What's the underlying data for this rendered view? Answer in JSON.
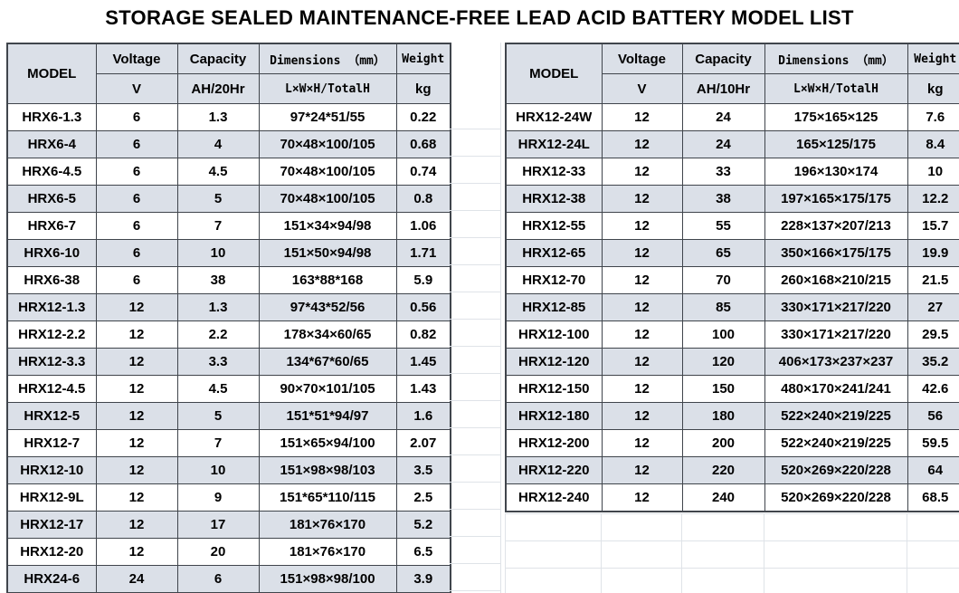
{
  "title": "STORAGE SEALED MAINTENANCE-FREE LEAD ACID BATTERY MODEL LIST",
  "colors": {
    "header_bg": "#dbe0e8",
    "row_alt_bg": "#dbe0e8",
    "border_dark": "#40454c",
    "grid_faint": "#dfe3e8"
  },
  "tables": [
    {
      "name": "left",
      "headers": {
        "model": "MODEL",
        "voltage": "Voltage",
        "voltage_unit": "V",
        "capacity": "Capacity",
        "capacity_unit": "AH/20Hr",
        "dimensions": "Dimensions （mm）",
        "dimensions_unit": "L×W×H/TotalH",
        "weight": "Weight",
        "weight_unit": "kg"
      },
      "rows": [
        [
          "HRX6-1.3",
          "6",
          "1.3",
          "97*24*51/55",
          "0.22"
        ],
        [
          "HRX6-4",
          "6",
          "4",
          "70×48×100/105",
          "0.68"
        ],
        [
          "HRX6-4.5",
          "6",
          "4.5",
          "70×48×100/105",
          "0.74"
        ],
        [
          "HRX6-5",
          "6",
          "5",
          "70×48×100/105",
          "0.8"
        ],
        [
          "HRX6-7",
          "6",
          "7",
          "151×34×94/98",
          "1.06"
        ],
        [
          "HRX6-10",
          "6",
          "10",
          "151×50×94/98",
          "1.71"
        ],
        [
          "HRX6-38",
          "6",
          "38",
          "163*88*168",
          "5.9"
        ],
        [
          "HRX12-1.3",
          "12",
          "1.3",
          "97*43*52/56",
          "0.56"
        ],
        [
          "HRX12-2.2",
          "12",
          "2.2",
          "178×34×60/65",
          "0.82"
        ],
        [
          "HRX12-3.3",
          "12",
          "3.3",
          "134*67*60/65",
          "1.45"
        ],
        [
          "HRX12-4.5",
          "12",
          "4.5",
          "90×70×101/105",
          "1.43"
        ],
        [
          "HRX12-5",
          "12",
          "5",
          "151*51*94/97",
          "1.6"
        ],
        [
          "HRX12-7",
          "12",
          "7",
          "151×65×94/100",
          "2.07"
        ],
        [
          "HRX12-10",
          "12",
          "10",
          "151×98×98/103",
          "3.5"
        ],
        [
          "HRX12-9L",
          "12",
          "9",
          "151*65*110/115",
          "2.5"
        ],
        [
          "HRX12-17",
          "12",
          "17",
          "181×76×170",
          "5.2"
        ],
        [
          "HRX12-20",
          "12",
          "20",
          "181×76×170",
          "6.5"
        ],
        [
          "HRX24-6",
          "24",
          "6",
          "151×98×98/100",
          "3.9"
        ]
      ]
    },
    {
      "name": "right",
      "headers": {
        "model": "MODEL",
        "voltage": "Voltage",
        "voltage_unit": "V",
        "capacity": "Capacity",
        "capacity_unit": "AH/10Hr",
        "dimensions": "Dimensions （mm）",
        "dimensions_unit": "L×W×H/TotalH",
        "weight": "Weight",
        "weight_unit": "kg"
      },
      "rows": [
        [
          "HRX12-24W",
          "12",
          "24",
          "175×165×125",
          "7.6"
        ],
        [
          "HRX12-24L",
          "12",
          "24",
          "165×125/175",
          "8.4"
        ],
        [
          "HRX12-33",
          "12",
          "33",
          "196×130×174",
          "10"
        ],
        [
          "HRX12-38",
          "12",
          "38",
          "197×165×175/175",
          "12.2"
        ],
        [
          "HRX12-55",
          "12",
          "55",
          "228×137×207/213",
          "15.7"
        ],
        [
          "HRX12-65",
          "12",
          "65",
          "350×166×175/175",
          "19.9"
        ],
        [
          "HRX12-70",
          "12",
          "70",
          "260×168×210/215",
          "21.5"
        ],
        [
          "HRX12-85",
          "12",
          "85",
          "330×171×217/220",
          "27"
        ],
        [
          "HRX12-100",
          "12",
          "100",
          "330×171×217/220",
          "29.5"
        ],
        [
          "HRX12-120",
          "12",
          "120",
          "406×173×237×237",
          "35.2"
        ],
        [
          "HRX12-150",
          "12",
          "150",
          "480×170×241/241",
          "42.6"
        ],
        [
          "HRX12-180",
          "12",
          "180",
          "522×240×219/225",
          "56"
        ],
        [
          "HRX12-200",
          "12",
          "200",
          "522×240×219/225",
          "59.5"
        ],
        [
          "HRX12-220",
          "12",
          "220",
          "520×269×220/228",
          "64"
        ],
        [
          "HRX12-240",
          "12",
          "240",
          "520×269×220/228",
          "68.5"
        ]
      ]
    }
  ]
}
